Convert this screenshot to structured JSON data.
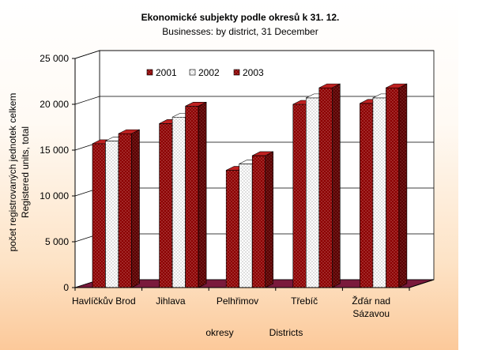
{
  "chart_data": {
    "type": "bar",
    "title": "Ekonomické subjekty podle okresů k 31. 12.",
    "subtitle": "Businesses: by district, 31 December",
    "categories": [
      [
        "Havlíčkův Brod"
      ],
      [
        "Jihlava"
      ],
      [
        "Pelhřimov"
      ],
      [
        "Třebíč"
      ],
      [
        "Žďár nad",
        "Sázavou"
      ]
    ],
    "series": [
      {
        "name": "2001",
        "values": [
          15700,
          17900,
          12800,
          20000,
          20100
        ]
      },
      {
        "name": "2002",
        "values": [
          16000,
          18600,
          13500,
          20700,
          20700
        ]
      },
      {
        "name": "2003",
        "values": [
          16800,
          19800,
          14400,
          21800,
          21800
        ]
      }
    ],
    "ylabel_cz": "počet registrovaných jednotek celkem",
    "ylabel_en": "Registered units, total",
    "xlabel_cz": "okresy",
    "xlabel_en": "Districts",
    "yticks": [
      0,
      5000,
      10000,
      15000,
      20000,
      25000
    ],
    "ytick_labels": [
      "0",
      "5 000",
      "10 000",
      "15 000",
      "20 000",
      "25 000"
    ],
    "ylim": [
      0,
      25000
    ],
    "legend_position": "top-center",
    "grid": true,
    "colors": {
      "dark": "#8b0000",
      "light": "#ffffff",
      "floor": "#7a1a3c",
      "wall": "#ffffff"
    }
  }
}
